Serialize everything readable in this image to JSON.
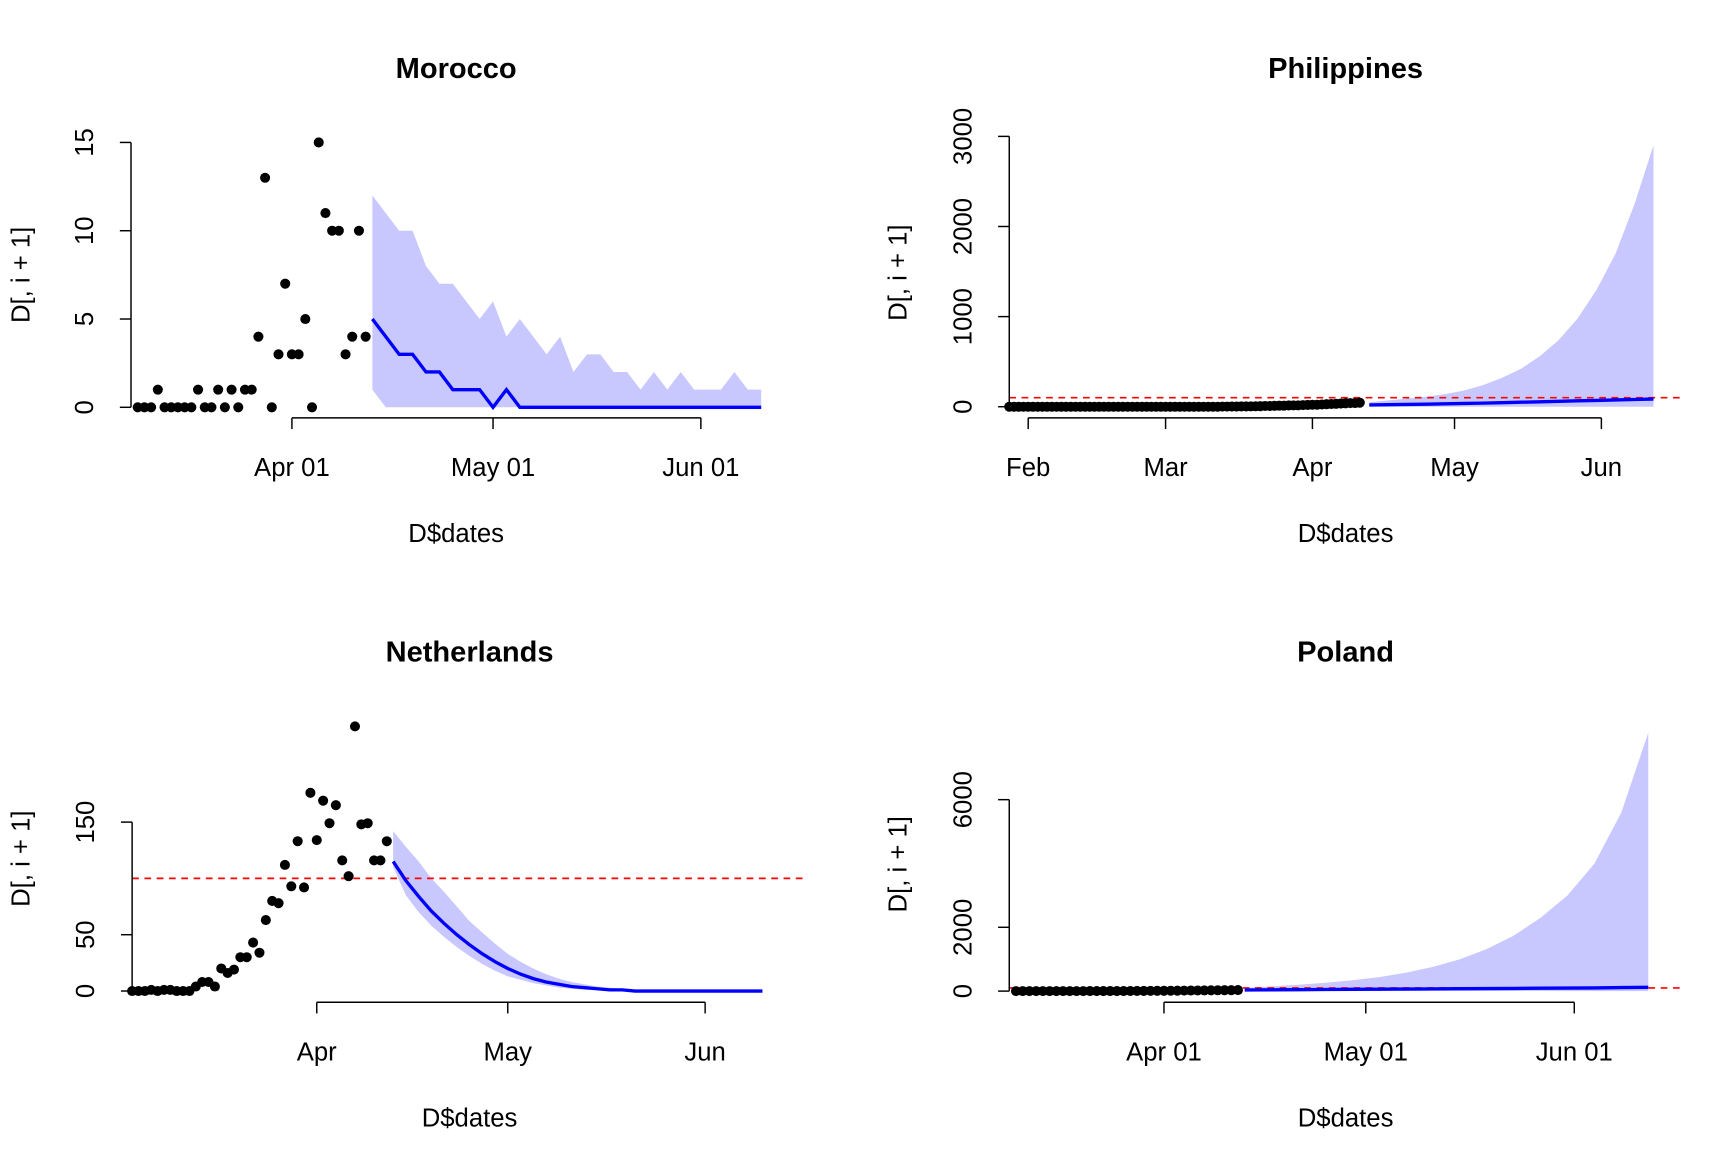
{
  "chart_data": [
    {
      "type": "line",
      "title": "Morocco",
      "xlabel": "D$dates",
      "ylabel": "D[, i + 1]",
      "xlim": [
        68,
        165
      ],
      "ylim": [
        -0.6,
        15.6
      ],
      "xticks": [
        {
          "value": 92,
          "label": "Apr 01"
        },
        {
          "value": 122,
          "label": "May 01"
        },
        {
          "value": 153,
          "label": "Jun 01"
        }
      ],
      "yticks": [
        0,
        5,
        10,
        15
      ],
      "observed": {
        "color": "#000000",
        "x": [
          69,
          70,
          71,
          72,
          73,
          74,
          75,
          76,
          77,
          78,
          79,
          80,
          81,
          82,
          83,
          84,
          85,
          86,
          87,
          88,
          89,
          90,
          91,
          92,
          93,
          94,
          95,
          96,
          97,
          98,
          99,
          100,
          101,
          102,
          103
        ],
        "values": [
          0,
          0,
          0,
          1,
          0,
          0,
          0,
          0,
          0,
          1,
          0,
          0,
          1,
          0,
          1,
          0,
          1,
          1,
          4,
          13,
          0,
          3,
          7,
          3,
          3,
          5,
          0,
          15,
          11,
          10,
          10,
          3,
          4,
          10,
          4
        ]
      },
      "forecast": {
        "color": "#0000ff",
        "band_color": "#c8c8ff",
        "x": [
          104,
          106,
          108,
          110,
          112,
          114,
          116,
          118,
          120,
          122,
          124,
          126,
          128,
          130,
          132,
          134,
          136,
          138,
          140,
          142,
          144,
          146,
          148,
          150,
          152,
          154,
          156,
          158,
          160,
          162
        ],
        "values": [
          5,
          4,
          3,
          3,
          2,
          2,
          1,
          1,
          1,
          0,
          1,
          0,
          0,
          0,
          0,
          0,
          0,
          0,
          0,
          0,
          0,
          0,
          0,
          0,
          0,
          0,
          0,
          0,
          0,
          0
        ],
        "upper": [
          12,
          11,
          10,
          10,
          8,
          7,
          7,
          6,
          5,
          6,
          4,
          5,
          4,
          3,
          4,
          2,
          3,
          3,
          2,
          2,
          1,
          2,
          1,
          2,
          1,
          1,
          1,
          2,
          1,
          1
        ],
        "lower": [
          1,
          0,
          0,
          0,
          0,
          0,
          0,
          0,
          0,
          0,
          0,
          0,
          0,
          0,
          0,
          0,
          0,
          0,
          0,
          0,
          0,
          0,
          0,
          0,
          0,
          0,
          0,
          0,
          0,
          0
        ]
      }
    },
    {
      "type": "line",
      "title": "Philippines",
      "xlabel": "D$dates",
      "ylabel": "D[, i + 1]",
      "xlim": [
        28,
        170
      ],
      "ylim": [
        -124,
        3100
      ],
      "xticks": [
        {
          "value": 32,
          "label": "Feb"
        },
        {
          "value": 61,
          "label": "Mar"
        },
        {
          "value": 92,
          "label": "Apr"
        },
        {
          "value": 122,
          "label": "May"
        },
        {
          "value": 153,
          "label": "Jun"
        }
      ],
      "yticks": [
        0,
        1000,
        2000,
        3000
      ],
      "reference_line": {
        "value": 100,
        "color": "#ff0000"
      },
      "observed": {
        "color": "#000000",
        "x": [
          28,
          29,
          30,
          31,
          32,
          33,
          34,
          35,
          36,
          37,
          38,
          39,
          40,
          41,
          42,
          43,
          44,
          45,
          46,
          47,
          48,
          49,
          50,
          51,
          52,
          53,
          54,
          55,
          56,
          57,
          58,
          59,
          60,
          61,
          62,
          63,
          64,
          65,
          66,
          67,
          68,
          69,
          70,
          71,
          72,
          73,
          74,
          75,
          76,
          77,
          78,
          79,
          80,
          81,
          82,
          83,
          84,
          85,
          86,
          87,
          88,
          89,
          90,
          91,
          92,
          93,
          94,
          95,
          96,
          97,
          98,
          99,
          100,
          101,
          102
        ],
        "values": [
          0,
          0,
          0,
          0,
          0,
          0,
          0,
          0,
          0,
          0,
          0,
          0,
          0,
          0,
          0,
          0,
          0,
          0,
          0,
          0,
          0,
          0,
          0,
          0,
          0,
          0,
          0,
          0,
          0,
          0,
          0,
          0,
          0,
          0,
          0,
          0,
          0,
          0,
          0,
          0,
          0,
          0,
          0,
          0,
          0,
          1,
          1,
          2,
          2,
          3,
          3,
          4,
          5,
          6,
          8,
          8,
          10,
          12,
          12,
          14,
          15,
          15,
          18,
          20,
          22,
          22,
          25,
          28,
          30,
          32,
          35,
          38,
          40,
          40,
          45
        ]
      },
      "forecast": {
        "color": "#0000ff",
        "band_color": "#c8c8ff",
        "x": [
          104,
          108,
          112,
          116,
          120,
          124,
          128,
          132,
          136,
          140,
          144,
          148,
          152,
          156,
          160,
          164
        ],
        "values": [
          20,
          22,
          25,
          28,
          32,
          36,
          40,
          45,
          50,
          55,
          60,
          65,
          70,
          75,
          80,
          85
        ],
        "upper": [
          50,
          70,
          90,
          110,
          140,
          180,
          240,
          320,
          420,
          560,
          740,
          980,
          1300,
          1700,
          2250,
          2900
        ],
        "lower": [
          0,
          0,
          0,
          0,
          0,
          0,
          0,
          0,
          0,
          0,
          0,
          0,
          0,
          0,
          0,
          0
        ]
      }
    },
    {
      "type": "line",
      "title": "Netherlands",
      "xlabel": "D$dates",
      "ylabel": "D[, i + 1]",
      "xlim": [
        63,
        169
      ],
      "ylim": [
        -10,
        245
      ],
      "xticks": [
        {
          "value": 92,
          "label": "Apr"
        },
        {
          "value": 122,
          "label": "May"
        },
        {
          "value": 153,
          "label": "Jun"
        }
      ],
      "yticks": [
        0,
        50,
        150
      ],
      "reference_line": {
        "value": 100,
        "color": "#ff0000"
      },
      "observed": {
        "color": "#000000",
        "x": [
          63,
          64,
          65,
          66,
          67,
          68,
          69,
          70,
          71,
          72,
          73,
          74,
          75,
          76,
          77,
          78,
          79,
          80,
          81,
          82,
          83,
          84,
          85,
          86,
          87,
          88,
          89,
          90,
          91,
          92,
          93,
          94,
          95,
          96,
          97,
          98,
          99,
          100,
          101,
          102,
          103
        ],
        "values": [
          0,
          0,
          0,
          1,
          0,
          1,
          1,
          0,
          0,
          0,
          4,
          8,
          8,
          4,
          20,
          16,
          19,
          30,
          30,
          43,
          34,
          63,
          80,
          78,
          112,
          93,
          133,
          92,
          176,
          134,
          169,
          149,
          165,
          116,
          102,
          235,
          148,
          149,
          116,
          116,
          133
        ]
      },
      "forecast": {
        "color": "#0000ff",
        "band_color": "#c8c8ff",
        "x": [
          104,
          106,
          108,
          110,
          112,
          114,
          116,
          118,
          120,
          122,
          124,
          126,
          128,
          130,
          132,
          134,
          136,
          138,
          140,
          142,
          144,
          146,
          148,
          150,
          152,
          154,
          156,
          158,
          160,
          162
        ],
        "values": [
          115,
          98,
          84,
          71,
          60,
          50,
          41,
          33,
          26,
          20,
          15,
          11,
          8,
          6,
          4,
          3,
          2,
          1,
          1,
          0,
          0,
          0,
          0,
          0,
          0,
          0,
          0,
          0,
          0,
          0
        ],
        "upper": [
          142,
          128,
          115,
          100,
          88,
          75,
          62,
          52,
          42,
          33,
          26,
          20,
          15,
          11,
          8,
          6,
          4,
          3,
          2,
          1,
          1,
          1,
          0,
          0,
          0,
          0,
          0,
          0,
          0,
          0
        ],
        "lower": [
          110,
          85,
          70,
          58,
          48,
          39,
          31,
          24,
          18,
          13,
          10,
          7,
          5,
          3,
          2,
          1,
          1,
          0,
          0,
          0,
          0,
          0,
          0,
          0,
          0,
          0,
          0,
          0,
          0,
          0
        ]
      }
    },
    {
      "type": "line",
      "title": "Poland",
      "xlabel": "D$dates",
      "ylabel": "D[, i + 1]",
      "xlim": [
        69,
        169
      ],
      "ylim": [
        -350,
        8300
      ],
      "xticks": [
        {
          "value": 92,
          "label": "Apr 01"
        },
        {
          "value": 122,
          "label": "May 01"
        },
        {
          "value": 153,
          "label": "Jun 01"
        }
      ],
      "yticks": [
        0,
        2000,
        6000
      ],
      "reference_line": {
        "value": 100,
        "color": "#ff0000"
      },
      "observed": {
        "color": "#000000",
        "x": [
          70,
          71,
          72,
          73,
          74,
          75,
          76,
          77,
          78,
          79,
          80,
          81,
          82,
          83,
          84,
          85,
          86,
          87,
          88,
          89,
          90,
          91,
          92,
          93,
          94,
          95,
          96,
          97,
          98,
          99,
          100,
          101,
          102,
          103
        ],
        "values": [
          0,
          0,
          0,
          0,
          0,
          0,
          0,
          0,
          0,
          0,
          0,
          1,
          1,
          1,
          2,
          2,
          3,
          4,
          5,
          6,
          8,
          10,
          10,
          12,
          14,
          16,
          18,
          20,
          22,
          24,
          26,
          28,
          30,
          32
        ]
      },
      "forecast": {
        "color": "#0000ff",
        "band_color": "#c8c8ff",
        "x": [
          104,
          108,
          112,
          116,
          120,
          124,
          128,
          132,
          136,
          140,
          144,
          148,
          152,
          156,
          160,
          164
        ],
        "values": [
          35,
          40,
          45,
          50,
          55,
          60,
          65,
          70,
          75,
          80,
          85,
          90,
          95,
          100,
          110,
          120
        ],
        "upper": [
          100,
          150,
          200,
          260,
          340,
          440,
          580,
          760,
          1000,
          1320,
          1740,
          2300,
          3000,
          4000,
          5600,
          8100
        ],
        "lower": [
          20,
          18,
          15,
          12,
          10,
          8,
          6,
          5,
          4,
          3,
          2,
          2,
          1,
          1,
          1,
          1
        ]
      }
    }
  ]
}
